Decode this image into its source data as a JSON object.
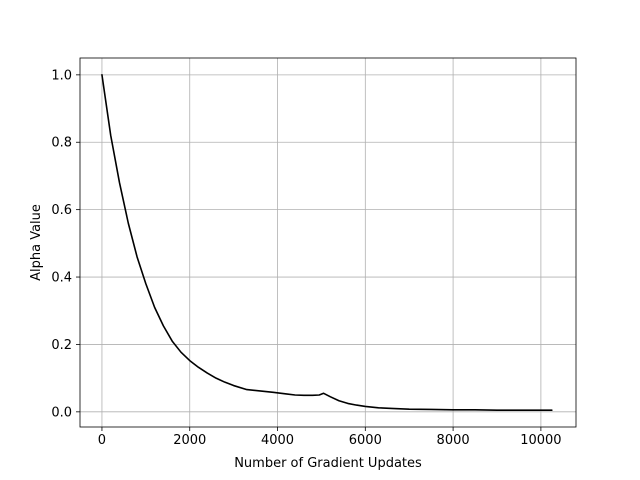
{
  "chart_data": {
    "type": "line",
    "title": "",
    "xlabel": "Number of Gradient Updates",
    "ylabel": "Alpha Value",
    "xlim": [
      -500,
      10800
    ],
    "ylim": [
      -0.045,
      1.05
    ],
    "xticks": [
      0,
      2000,
      4000,
      6000,
      8000,
      10000
    ],
    "xtick_labels": [
      "0",
      "2000",
      "4000",
      "6000",
      "8000",
      "10000"
    ],
    "yticks": [
      0.0,
      0.2,
      0.4,
      0.6,
      0.8,
      1.0
    ],
    "ytick_labels": [
      "0.0",
      "0.2",
      "0.4",
      "0.6",
      "0.8",
      "1.0"
    ],
    "grid": true,
    "legend": "none",
    "series": [
      {
        "color": "#000000",
        "x": [
          0,
          200,
          400,
          600,
          800,
          1000,
          1200,
          1400,
          1600,
          1800,
          2000,
          2200,
          2400,
          2600,
          2800,
          3000,
          3300,
          3600,
          3900,
          4200,
          4400,
          4600,
          4800,
          4950,
          5050,
          5200,
          5400,
          5600,
          5800,
          6000,
          6300,
          6600,
          7000,
          7500,
          8000,
          8500,
          9000,
          9500,
          10000,
          10250
        ],
        "y": [
          1.0,
          0.82,
          0.68,
          0.56,
          0.46,
          0.38,
          0.31,
          0.255,
          0.21,
          0.177,
          0.152,
          0.132,
          0.115,
          0.1,
          0.088,
          0.078,
          0.066,
          0.062,
          0.058,
          0.053,
          0.05,
          0.049,
          0.049,
          0.05,
          0.055,
          0.045,
          0.033,
          0.025,
          0.02,
          0.016,
          0.012,
          0.01,
          0.008,
          0.007,
          0.006,
          0.006,
          0.005,
          0.005,
          0.005,
          0.005
        ]
      }
    ]
  }
}
